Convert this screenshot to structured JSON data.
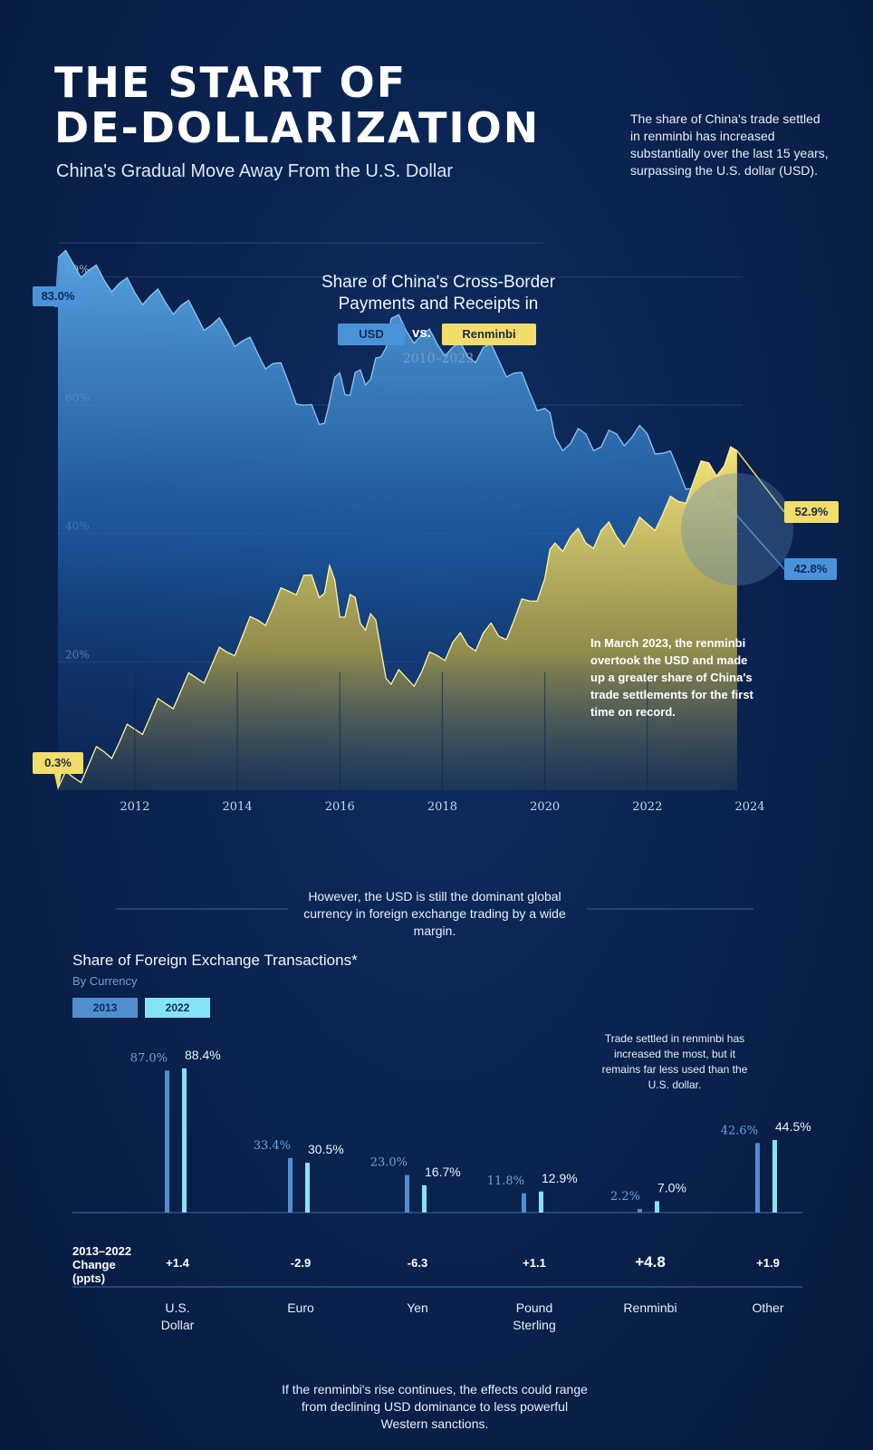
{
  "header": {
    "title_line1": "THE START OF",
    "title_line2": "DE-DOLLARIZATION",
    "subtitle": "China's Gradual Move Away From the U.S. Dollar",
    "intro": "The share of China's trade settled in renminbi has increased substantially over the last 15 years, surpassing the U.S. dollar (USD)."
  },
  "colors": {
    "usd": "#4b93d8",
    "renminbi": "#f2dd6a",
    "fx_2013": "#4f8fd0",
    "fx_2022": "#86e3f5",
    "background": "#0a2350"
  },
  "chart_data": [
    {
      "type": "area",
      "title_line1": "Share of China's Cross-Border",
      "title_line2": "Payments and Receipts in",
      "legend": {
        "usd": "USD",
        "vs": "vs.",
        "renminbi": "Renminbi"
      },
      "period": "2010–2023",
      "ylim": [
        0,
        85
      ],
      "yticks": [
        80,
        60,
        40,
        20
      ],
      "ytick_labels": [
        "80%",
        "60%",
        "40%",
        "20%"
      ],
      "xlim": [
        2010.5,
        2024
      ],
      "xticks": [
        "2012",
        "2014",
        "2016",
        "2018",
        "2020",
        "2022",
        "2024"
      ],
      "series": [
        {
          "name": "USD",
          "x": [
            2010.5,
            2010.8,
            2011.1,
            2011.4,
            2011.7,
            2012.0,
            2012.3,
            2012.6,
            2012.9,
            2013.2,
            2013.5,
            2013.8,
            2014.1,
            2014.4,
            2014.7,
            2015.0,
            2015.3,
            2015.6,
            2015.8,
            2016.0,
            2016.2,
            2016.4,
            2016.6,
            2016.8,
            2017.0,
            2017.3,
            2017.6,
            2017.9,
            2018.2,
            2018.5,
            2018.8,
            2019.1,
            2019.4,
            2019.7,
            2020.0,
            2020.2,
            2020.5,
            2020.8,
            2021.1,
            2021.4,
            2021.7,
            2022.0,
            2022.3,
            2022.6,
            2022.9,
            2023.2,
            2023.5,
            2023.75
          ],
          "values": [
            83.0,
            82.0,
            81.0,
            79.5,
            79.0,
            77.5,
            77.0,
            76.0,
            75.5,
            74.0,
            72.5,
            71.5,
            70.0,
            68.0,
            66.5,
            63.5,
            60.0,
            57.0,
            60.5,
            65.0,
            61.5,
            65.5,
            64.0,
            67.5,
            73.5,
            71.5,
            71.0,
            69.5,
            69.0,
            67.5,
            69.0,
            67.0,
            65.0,
            62.0,
            59.5,
            55.0,
            54.0,
            55.5,
            53.5,
            55.5,
            55.0,
            55.5,
            52.5,
            50.0,
            47.0,
            49.5,
            44.0,
            42.8
          ],
          "start_label": "83.0%",
          "end_label": "42.8%"
        },
        {
          "name": "Renminbi",
          "x": [
            2010.5,
            2010.8,
            2011.1,
            2011.4,
            2011.7,
            2012.0,
            2012.3,
            2012.6,
            2012.9,
            2013.2,
            2013.5,
            2013.8,
            2014.1,
            2014.4,
            2014.7,
            2015.0,
            2015.3,
            2015.6,
            2015.8,
            2016.0,
            2016.2,
            2016.4,
            2016.6,
            2016.8,
            2017.0,
            2017.3,
            2017.6,
            2017.9,
            2018.2,
            2018.5,
            2018.8,
            2019.1,
            2019.4,
            2019.7,
            2020.0,
            2020.2,
            2020.5,
            2020.8,
            2021.1,
            2021.4,
            2021.7,
            2022.0,
            2022.3,
            2022.6,
            2022.9,
            2023.2,
            2023.5,
            2023.75
          ],
          "values": [
            0.3,
            2.0,
            4.0,
            6.0,
            7.5,
            9.5,
            11.5,
            13.5,
            15.5,
            17.5,
            19.5,
            21.5,
            24.0,
            26.5,
            28.5,
            31.0,
            33.5,
            30.0,
            35.0,
            27.0,
            30.5,
            26.0,
            27.5,
            22.0,
            16.5,
            17.5,
            18.5,
            21.0,
            23.0,
            22.5,
            24.5,
            24.0,
            26.5,
            29.5,
            33.0,
            38.5,
            39.5,
            38.5,
            40.5,
            39.5,
            40.0,
            41.5,
            43.0,
            45.0,
            48.0,
            51.0,
            50.5,
            52.9
          ],
          "start_label": "0.3%",
          "end_label": "52.9%"
        }
      ],
      "annotation": "In March 2023, the renminbi overtook the USD and made up a greater share of China's trade settlements for the first time on record."
    },
    {
      "type": "bar",
      "title": "Share of Foreign Exchange Transactions*",
      "subtitle": "By Currency",
      "legend": [
        "2013",
        "2022"
      ],
      "ylim": [
        0,
        100
      ],
      "categories": [
        "U.S. Dollar",
        "Euro",
        "Yen",
        "Pound Sterling",
        "Renminbi",
        "Other"
      ],
      "category_lines": [
        [
          "U.S.",
          "Dollar"
        ],
        [
          "Euro"
        ],
        [
          "Yen"
        ],
        [
          "Pound",
          "Sterling"
        ],
        [
          "Renminbi"
        ],
        [
          "Other"
        ]
      ],
      "series": [
        {
          "name": "2013",
          "values": [
            87.0,
            33.4,
            23.0,
            11.8,
            2.2,
            42.6
          ],
          "labels": [
            "87.0%",
            "33.4%",
            "23.0%",
            "11.8%",
            "2.2%",
            "42.6%"
          ]
        },
        {
          "name": "2022",
          "values": [
            88.4,
            30.5,
            16.7,
            12.9,
            7.0,
            44.5
          ],
          "labels": [
            "88.4%",
            "30.5%",
            "16.7%",
            "12.9%",
            "7.0%",
            "44.5%"
          ]
        }
      ],
      "change_header": [
        "2013–2022",
        "Change",
        "(ppts)"
      ],
      "changes": [
        "+1.4",
        "-2.9",
        "-6.3",
        "+1.1",
        "+4.8",
        "+1.9"
      ],
      "annotation": "Trade settled in renminbi has increased the most, but it remains far less used than the U.S. dollar."
    }
  ],
  "divider_text": "However, the USD is still the dominant global currency in foreign exchange trading by a wide margin.",
  "footer": "If the renminbi's rise continues, the effects could range from declining USD dominance to less powerful Western sanctions."
}
